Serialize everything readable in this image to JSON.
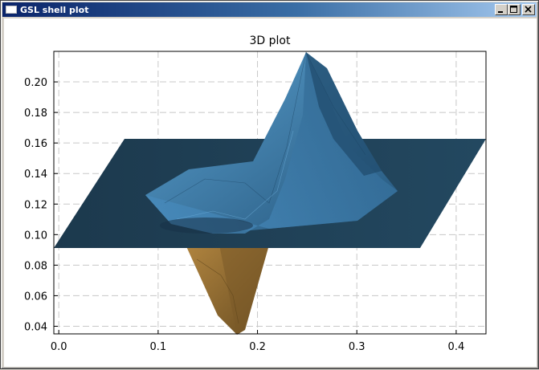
{
  "window": {
    "title": "GSL shell plot",
    "buttons": [
      "minimize",
      "maximize",
      "close"
    ]
  },
  "chart_data": {
    "type": "3d-surface",
    "title": "3D plot",
    "xlabel": "",
    "ylabel": "",
    "xlim": [
      -0.005,
      0.43
    ],
    "ylim": [
      0.035,
      0.22
    ],
    "x_ticks": [
      "0.0",
      "0.1",
      "0.2",
      "0.3",
      "0.4"
    ],
    "x_tick_values": [
      0.0,
      0.1,
      0.2,
      0.3,
      0.4
    ],
    "y_ticks": [
      "0.04",
      "0.06",
      "0.08",
      "0.10",
      "0.12",
      "0.14",
      "0.16",
      "0.18",
      "0.20"
    ],
    "y_tick_values": [
      0.04,
      0.06,
      0.08,
      0.1,
      0.12,
      0.14,
      0.16,
      0.18,
      0.2
    ],
    "grid": true,
    "surface": {
      "base_plane_level": 0.092,
      "peak": {
        "x": 0.25,
        "y": 0.22
      },
      "trough": {
        "x": 0.18,
        "y": 0.037
      },
      "positive_color": "#3d7cab",
      "negative_color": "#8c6a34",
      "plane_color": "#1f3d52"
    }
  }
}
